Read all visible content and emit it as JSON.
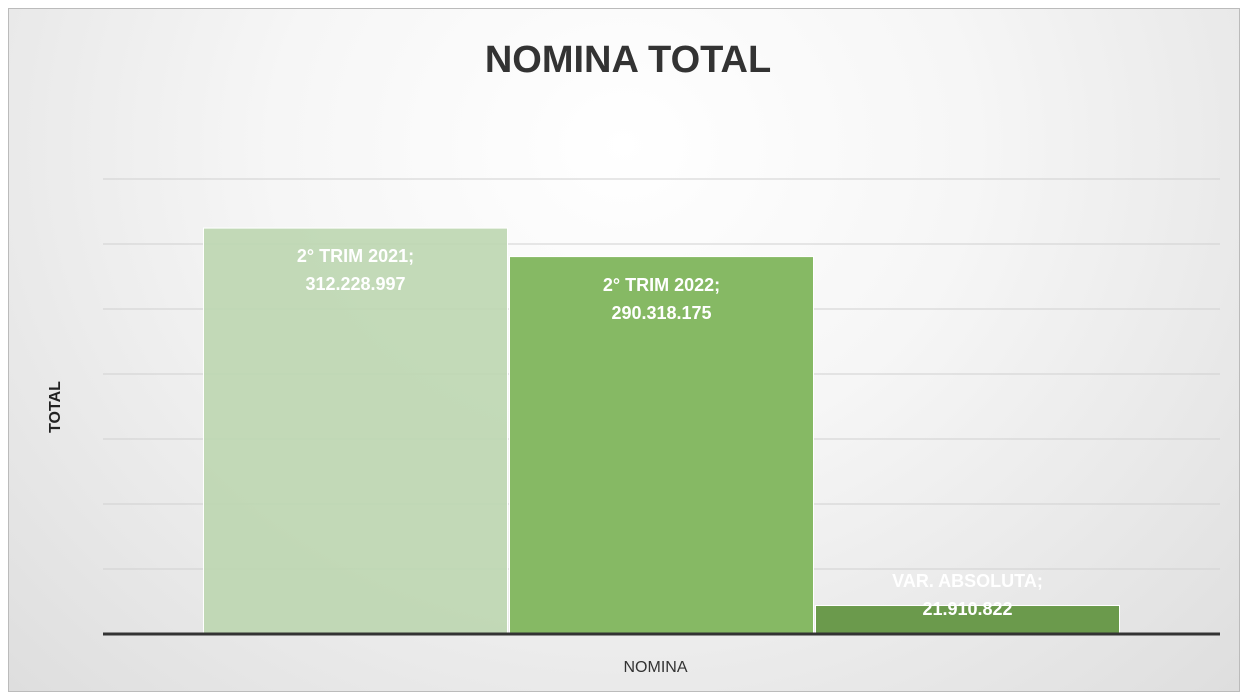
{
  "chart_data": {
    "type": "bar",
    "title": "NOMINA TOTAL",
    "y_axis_label": "TOTAL",
    "categories": [
      "NOMINA"
    ],
    "series": [
      {
        "color": "#bcd6b0",
        "values": [
          312228997
        ],
        "value_labels": [
          "2° TRIM 2021; 312.228.997"
        ]
      },
      {
        "color": "#86b964",
        "values": [
          290318175
        ],
        "value_labels": [
          "2° TRIM 2022; 290.318.175"
        ]
      },
      {
        "color": "#6b9a4c",
        "values": [
          21910822
        ],
        "value_labels": [
          "VAR. ABSOLUTA; 21.910.822"
        ]
      }
    ],
    "ylim": [
      0,
      350000000
    ],
    "yticks": [
      0,
      50000000,
      100000000,
      150000000,
      200000000,
      250000000,
      300000000,
      350000000
    ],
    "grid": true
  }
}
